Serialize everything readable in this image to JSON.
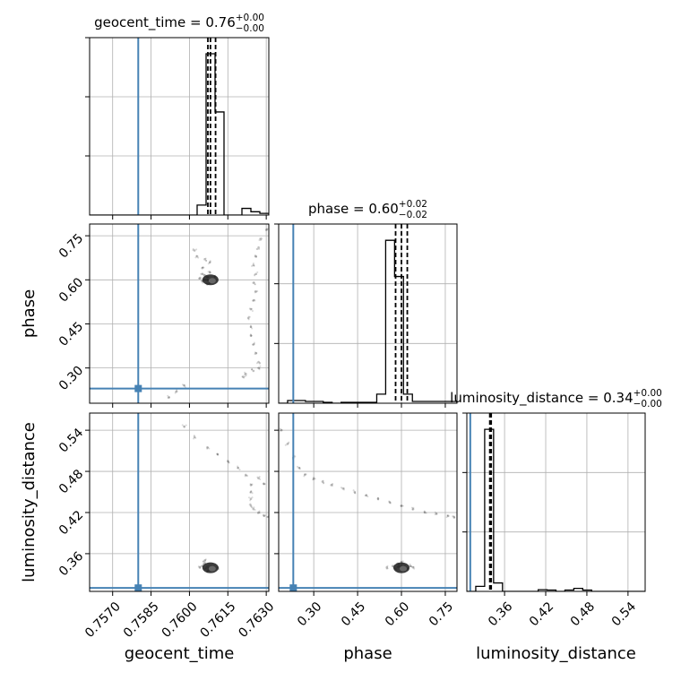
{
  "chart_data": {
    "type": "corner",
    "parameters": [
      "geocent_time",
      "phase",
      "luminosity_distance"
    ],
    "axis_labels": [
      "geocent_time",
      "phase",
      "luminosity_distance"
    ],
    "ranges": {
      "geocent_time": [
        0.7561,
        0.7631
      ],
      "phase": [
        0.18,
        0.79
      ],
      "luminosity_distance": [
        0.305,
        0.565
      ]
    },
    "ticks": {
      "geocent_time": [
        "0.7570",
        "0.7585",
        "0.7600",
        "0.7615",
        "0.7630"
      ],
      "phase": [
        "0.30",
        "0.45",
        "0.60",
        "0.75"
      ],
      "luminosity_distance": [
        "0.36",
        "0.42",
        "0.48",
        "0.54"
      ]
    },
    "truths": {
      "geocent_time": 0.758,
      "phase": 0.23,
      "luminosity_distance": 0.31
    },
    "truth_color": "#4682b4",
    "grid": true,
    "marginals": [
      {
        "parameter": "geocent_time",
        "title_label": "geocent_time = 0.76",
        "median": "0.76",
        "plus": "+0.00",
        "minus": "−0.00",
        "quantiles": [
          0.76072,
          0.76082,
          0.76102
        ],
        "bin_edges": [
          0.7561,
          0.75645,
          0.7568,
          0.75715,
          0.7575,
          0.75785,
          0.7582,
          0.75855,
          0.7589,
          0.75925,
          0.7596,
          0.75995,
          0.7603,
          0.76065,
          0.761,
          0.76135,
          0.7617,
          0.76205,
          0.7624,
          0.76275,
          0.7631
        ],
        "counts": [
          0,
          0,
          0,
          0,
          0,
          0,
          0,
          0,
          0,
          0,
          0,
          0,
          0.06,
          0.97,
          0.62,
          0,
          0,
          0.04,
          0.02,
          0.01
        ]
      },
      {
        "parameter": "phase",
        "title_label": "phase = 0.60",
        "median": "0.60",
        "plus": "+0.02",
        "minus": "−0.02",
        "quantiles": [
          0.58,
          0.6,
          0.62
        ],
        "bin_edges": [
          0.18,
          0.2105,
          0.241,
          0.2715,
          0.302,
          0.3325,
          0.363,
          0.3935,
          0.424,
          0.4545,
          0.485,
          0.5155,
          0.546,
          0.5765,
          0.607,
          0.6375,
          0.668,
          0.6985,
          0.729,
          0.7595,
          0.79
        ],
        "counts": [
          0,
          0.015,
          0.015,
          0.01,
          0.01,
          0.005,
          0,
          0.005,
          0.005,
          0.005,
          0.005,
          0.05,
          0.9,
          0.7,
          0.05,
          0.01,
          0.01,
          0.01,
          0.01,
          0.01
        ]
      },
      {
        "parameter": "luminosity_distance",
        "title_label": "luminosity_distance = 0.34",
        "median": "0.34",
        "plus": "+0.00",
        "minus": "−0.00",
        "quantiles": [
          0.3385,
          0.3395,
          0.3405
        ],
        "bin_edges": [
          0.305,
          0.318,
          0.331,
          0.344,
          0.357,
          0.37,
          0.383,
          0.396,
          0.409,
          0.422,
          0.435,
          0.448,
          0.461,
          0.474,
          0.487,
          0.5,
          0.513,
          0.526,
          0.539,
          0.552,
          0.565
        ],
        "counts": [
          0,
          0.03,
          0.96,
          0.05,
          0,
          0,
          0,
          0,
          0.01,
          0.008,
          0,
          0.008,
          0.018,
          0.008,
          0,
          0,
          0,
          0,
          0,
          0
        ]
      }
    ],
    "scatter": [
      {
        "x": "geocent_time",
        "y": "phase",
        "points": [
          [
            0.7606,
            0.6
          ],
          [
            0.7607,
            0.61
          ],
          [
            0.7608,
            0.59
          ],
          [
            0.7605,
            0.62
          ],
          [
            0.7609,
            0.6
          ],
          [
            0.7607,
            0.585
          ],
          [
            0.7606,
            0.615
          ],
          [
            0.7608,
            0.625
          ],
          [
            0.7605,
            0.595
          ],
          [
            0.761,
            0.61
          ],
          [
            0.7604,
            0.605
          ],
          [
            0.7607,
            0.6
          ],
          [
            0.7605,
            0.64
          ],
          [
            0.7603,
            0.68
          ],
          [
            0.7602,
            0.7
          ],
          [
            0.7608,
            0.66
          ],
          [
            0.7606,
            0.67
          ],
          [
            0.7631,
            0.79
          ],
          [
            0.763,
            0.77
          ],
          [
            0.7628,
            0.74
          ],
          [
            0.7627,
            0.71
          ],
          [
            0.7626,
            0.68
          ],
          [
            0.7625,
            0.65
          ],
          [
            0.7626,
            0.62
          ],
          [
            0.7625,
            0.59
          ],
          [
            0.7626,
            0.56
          ],
          [
            0.7625,
            0.53
          ],
          [
            0.7624,
            0.5
          ],
          [
            0.7623,
            0.47
          ],
          [
            0.7624,
            0.44
          ],
          [
            0.7624,
            0.41
          ],
          [
            0.7625,
            0.38
          ],
          [
            0.7626,
            0.35
          ],
          [
            0.7627,
            0.32
          ],
          [
            0.7627,
            0.3
          ],
          [
            0.7625,
            0.29
          ],
          [
            0.7622,
            0.28
          ],
          [
            0.7621,
            0.27
          ],
          [
            0.7598,
            0.24
          ],
          [
            0.7595,
            0.22
          ],
          [
            0.7592,
            0.2
          ]
        ]
      },
      {
        "x": "geocent_time",
        "y": "luminosity_distance",
        "points": [
          [
            0.7598,
            0.545
          ],
          [
            0.7602,
            0.53
          ],
          [
            0.7607,
            0.515
          ],
          [
            0.7611,
            0.505
          ],
          [
            0.7615,
            0.495
          ],
          [
            0.7619,
            0.485
          ],
          [
            0.7622,
            0.475
          ],
          [
            0.7627,
            0.47
          ],
          [
            0.7629,
            0.462
          ],
          [
            0.7624,
            0.46
          ],
          [
            0.7624,
            0.45
          ],
          [
            0.7624,
            0.44
          ],
          [
            0.7624,
            0.43
          ],
          [
            0.7625,
            0.425
          ],
          [
            0.7627,
            0.42
          ],
          [
            0.7629,
            0.416
          ],
          [
            0.7631,
            0.414
          ],
          [
            0.7604,
            0.34
          ],
          [
            0.7605,
            0.342
          ],
          [
            0.7606,
            0.338
          ],
          [
            0.7607,
            0.341
          ],
          [
            0.7608,
            0.339
          ],
          [
            0.7609,
            0.34
          ],
          [
            0.761,
            0.338
          ],
          [
            0.7606,
            0.346
          ],
          [
            0.7607,
            0.335
          ],
          [
            0.7611,
            0.34
          ],
          [
            0.7606,
            0.35
          ],
          [
            0.7608,
            0.336
          ]
        ]
      },
      {
        "x": "phase",
        "y": "luminosity_distance",
        "points": [
          [
            0.19,
            0.54
          ],
          [
            0.21,
            0.52
          ],
          [
            0.23,
            0.5
          ],
          [
            0.25,
            0.485
          ],
          [
            0.27,
            0.475
          ],
          [
            0.3,
            0.47
          ],
          [
            0.33,
            0.465
          ],
          [
            0.36,
            0.46
          ],
          [
            0.4,
            0.455
          ],
          [
            0.44,
            0.45
          ],
          [
            0.48,
            0.445
          ],
          [
            0.52,
            0.44
          ],
          [
            0.56,
            0.435
          ],
          [
            0.6,
            0.43
          ],
          [
            0.64,
            0.425
          ],
          [
            0.68,
            0.42
          ],
          [
            0.72,
            0.418
          ],
          [
            0.76,
            0.415
          ],
          [
            0.78,
            0.413
          ],
          [
            0.55,
            0.34
          ],
          [
            0.57,
            0.342
          ],
          [
            0.58,
            0.338
          ],
          [
            0.59,
            0.341
          ],
          [
            0.6,
            0.339
          ],
          [
            0.61,
            0.34
          ],
          [
            0.62,
            0.338
          ],
          [
            0.63,
            0.342
          ],
          [
            0.6,
            0.348
          ],
          [
            0.61,
            0.335
          ],
          [
            0.64,
            0.34
          ],
          [
            0.59,
            0.345
          ]
        ]
      }
    ]
  }
}
